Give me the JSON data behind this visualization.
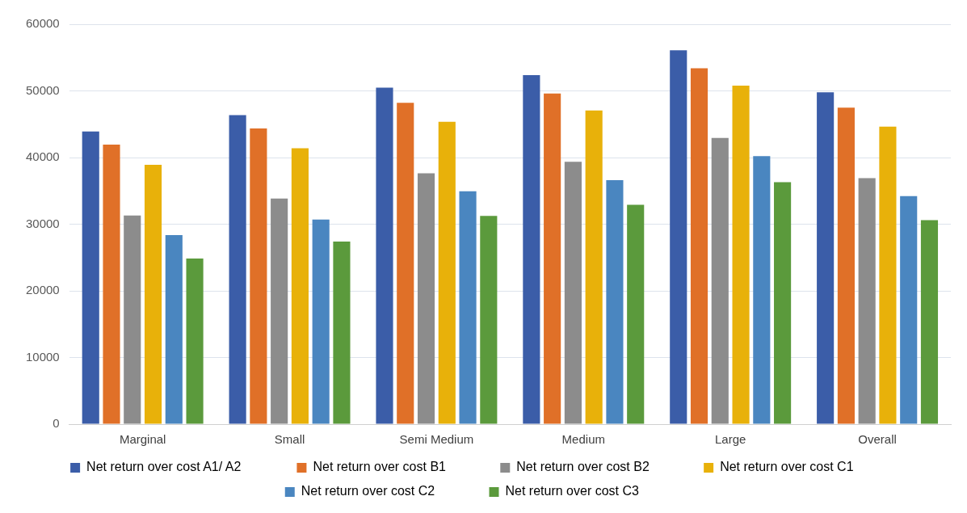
{
  "chart_data": {
    "type": "bar",
    "categories": [
      "Marginal",
      "Small",
      "Semi Medium",
      "Medium",
      "Large",
      "Overall"
    ],
    "series": [
      {
        "name": "Net return over cost A1/ A2",
        "color": "#3b5da8",
        "values": [
          43900,
          46350,
          50500,
          52350,
          56100,
          49800
        ]
      },
      {
        "name": "Net return over cost B1",
        "color": "#e07028",
        "values": [
          41950,
          44350,
          48200,
          49600,
          53400,
          47500
        ]
      },
      {
        "name": "Net return over cost B2",
        "color": "#8c8c8c",
        "values": [
          31300,
          33850,
          37650,
          39350,
          42950,
          36900
        ]
      },
      {
        "name": "Net return over cost C1",
        "color": "#e8b10a",
        "values": [
          38900,
          41400,
          45350,
          47050,
          50800,
          44650
        ]
      },
      {
        "name": "Net return over cost C2",
        "color": "#4a86c0",
        "values": [
          28350,
          30700,
          34950,
          36600,
          40200,
          34200
        ]
      },
      {
        "name": "Net return over cost C3",
        "color": "#5b9a3c",
        "values": [
          24850,
          27400,
          31250,
          32900,
          36300,
          30600
        ]
      }
    ],
    "ylim": [
      0,
      60000
    ],
    "yticks": [
      0,
      10000,
      20000,
      30000,
      40000,
      50000,
      60000
    ],
    "grid": "y",
    "legend": "bottom"
  }
}
